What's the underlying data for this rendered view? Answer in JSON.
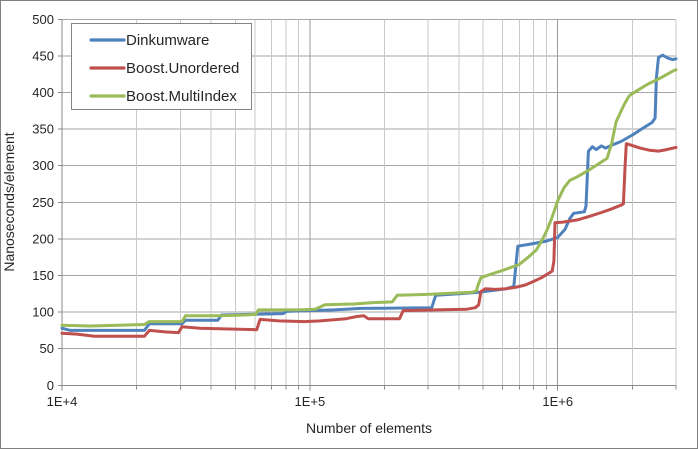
{
  "chart_data": {
    "type": "line",
    "title": "",
    "xlabel": "Number of elements",
    "ylabel": "Nanoseconds/element",
    "x_scale": "log10",
    "xlim": [
      10000,
      3000000
    ],
    "ylim": [
      0,
      500
    ],
    "grid": true,
    "legend_position": "top-left",
    "colors": {
      "dinkumware": "#4F81BD",
      "boost_unordered": "#C0504D",
      "boost_multiindex": "#9BBB59",
      "grid_major": "#9B9B9B",
      "grid_horizontal": "#A6A6A6",
      "grid_minor": "#C9C9C9",
      "axis_line": "#8A8A8A",
      "chart_border": "#808080",
      "legend_border": "#848484"
    },
    "y_ticks": [
      {
        "value": 0,
        "label": "0"
      },
      {
        "value": 50,
        "label": "50"
      },
      {
        "value": 100,
        "label": "100"
      },
      {
        "value": 150,
        "label": "150"
      },
      {
        "value": 200,
        "label": "200"
      },
      {
        "value": 250,
        "label": "250"
      },
      {
        "value": 300,
        "label": "300"
      },
      {
        "value": 350,
        "label": "350"
      },
      {
        "value": 400,
        "label": "400"
      },
      {
        "value": 450,
        "label": "450"
      },
      {
        "value": 500,
        "label": "500"
      }
    ],
    "x_major_ticks": [
      {
        "value": 10000,
        "label": "1E+4"
      },
      {
        "value": 100000,
        "label": "1E+5"
      },
      {
        "value": 1000000,
        "label": "1E+6"
      }
    ],
    "x_minor_ticks": [
      20000,
      30000,
      40000,
      50000,
      60000,
      70000,
      80000,
      90000,
      200000,
      300000,
      400000,
      500000,
      600000,
      700000,
      800000,
      900000,
      2000000,
      3000000
    ],
    "series": [
      {
        "name": "Dinkumware",
        "color": "#4F81BD",
        "points": [
          [
            10000,
            78
          ],
          [
            10800,
            75
          ],
          [
            14000,
            75
          ],
          [
            21500,
            75
          ],
          [
            22500,
            84
          ],
          [
            30500,
            84
          ],
          [
            31500,
            89
          ],
          [
            42500,
            89
          ],
          [
            44000,
            96
          ],
          [
            60000,
            97
          ],
          [
            78000,
            98
          ],
          [
            80500,
            101
          ],
          [
            100000,
            102
          ],
          [
            125000,
            103
          ],
          [
            140000,
            104
          ],
          [
            160000,
            105
          ],
          [
            310000,
            106
          ],
          [
            322000,
            123
          ],
          [
            400000,
            125
          ],
          [
            480000,
            127
          ],
          [
            560000,
            130
          ],
          [
            620000,
            132
          ],
          [
            665000,
            135
          ],
          [
            672000,
            150
          ],
          [
            690000,
            190
          ],
          [
            780000,
            193
          ],
          [
            900000,
            197
          ],
          [
            1000000,
            202
          ],
          [
            1070000,
            213
          ],
          [
            1120000,
            228
          ],
          [
            1160000,
            235
          ],
          [
            1280000,
            237
          ],
          [
            1300000,
            245
          ],
          [
            1330000,
            320
          ],
          [
            1380000,
            326
          ],
          [
            1430000,
            322
          ],
          [
            1500000,
            327
          ],
          [
            1560000,
            324
          ],
          [
            1650000,
            328
          ],
          [
            1800000,
            333
          ],
          [
            2000000,
            342
          ],
          [
            2200000,
            351
          ],
          [
            2400000,
            359
          ],
          [
            2470000,
            365
          ],
          [
            2500000,
            420
          ],
          [
            2550000,
            448
          ],
          [
            2650000,
            451
          ],
          [
            2780000,
            447
          ],
          [
            2900000,
            445
          ],
          [
            3000000,
            446
          ]
        ]
      },
      {
        "name": "Boost.Unordered",
        "color": "#C0504D",
        "points": [
          [
            10000,
            71
          ],
          [
            11500,
            70
          ],
          [
            13500,
            67
          ],
          [
            21500,
            67
          ],
          [
            22500,
            75
          ],
          [
            26000,
            73
          ],
          [
            29500,
            72
          ],
          [
            30500,
            80
          ],
          [
            36000,
            78
          ],
          [
            45000,
            77
          ],
          [
            61000,
            76
          ],
          [
            63000,
            90
          ],
          [
            75000,
            88
          ],
          [
            95000,
            87
          ],
          [
            110000,
            88
          ],
          [
            140000,
            91
          ],
          [
            155000,
            94
          ],
          [
            165000,
            95
          ],
          [
            172000,
            91
          ],
          [
            230000,
            91
          ],
          [
            238000,
            102
          ],
          [
            320000,
            103
          ],
          [
            430000,
            104
          ],
          [
            465000,
            106
          ],
          [
            480000,
            110
          ],
          [
            490000,
            128
          ],
          [
            510000,
            132
          ],
          [
            560000,
            131
          ],
          [
            620000,
            132
          ],
          [
            680000,
            134
          ],
          [
            740000,
            137
          ],
          [
            800000,
            142
          ],
          [
            860000,
            147
          ],
          [
            910000,
            152
          ],
          [
            950000,
            156
          ],
          [
            965000,
            170
          ],
          [
            975000,
            222
          ],
          [
            1050000,
            223
          ],
          [
            1200000,
            226
          ],
          [
            1350000,
            231
          ],
          [
            1500000,
            236
          ],
          [
            1650000,
            241
          ],
          [
            1800000,
            246
          ],
          [
            1840000,
            248
          ],
          [
            1870000,
            300
          ],
          [
            1890000,
            330
          ],
          [
            1980000,
            328
          ],
          [
            2150000,
            324
          ],
          [
            2350000,
            321
          ],
          [
            2550000,
            320
          ],
          [
            2750000,
            322
          ],
          [
            3000000,
            325
          ]
        ]
      },
      {
        "name": "Boost.MultiIndex",
        "color": "#9BBB59",
        "points": [
          [
            10000,
            82
          ],
          [
            13000,
            81
          ],
          [
            17000,
            82
          ],
          [
            21500,
            83
          ],
          [
            22500,
            87
          ],
          [
            30500,
            87
          ],
          [
            31500,
            95
          ],
          [
            43000,
            95
          ],
          [
            55000,
            96
          ],
          [
            60500,
            97
          ],
          [
            62000,
            103
          ],
          [
            90000,
            103
          ],
          [
            105000,
            104
          ],
          [
            115000,
            110
          ],
          [
            150000,
            111
          ],
          [
            180000,
            113
          ],
          [
            215000,
            114
          ],
          [
            225000,
            123
          ],
          [
            290000,
            124
          ],
          [
            380000,
            126
          ],
          [
            450000,
            127
          ],
          [
            470000,
            129
          ],
          [
            475000,
            135
          ],
          [
            490000,
            147
          ],
          [
            540000,
            152
          ],
          [
            600000,
            157
          ],
          [
            660000,
            162
          ],
          [
            700000,
            165
          ],
          [
            760000,
            175
          ],
          [
            820000,
            185
          ],
          [
            860000,
            197
          ],
          [
            900000,
            210
          ],
          [
            950000,
            230
          ],
          [
            1000000,
            252
          ],
          [
            1060000,
            270
          ],
          [
            1120000,
            280
          ],
          [
            1200000,
            285
          ],
          [
            1350000,
            295
          ],
          [
            1500000,
            305
          ],
          [
            1580000,
            310
          ],
          [
            1650000,
            330
          ],
          [
            1720000,
            360
          ],
          [
            1850000,
            383
          ],
          [
            1930000,
            394
          ],
          [
            1970000,
            397
          ],
          [
            2100000,
            403
          ],
          [
            2300000,
            411
          ],
          [
            2600000,
            420
          ],
          [
            2900000,
            429
          ],
          [
            3000000,
            431
          ]
        ]
      }
    ]
  }
}
